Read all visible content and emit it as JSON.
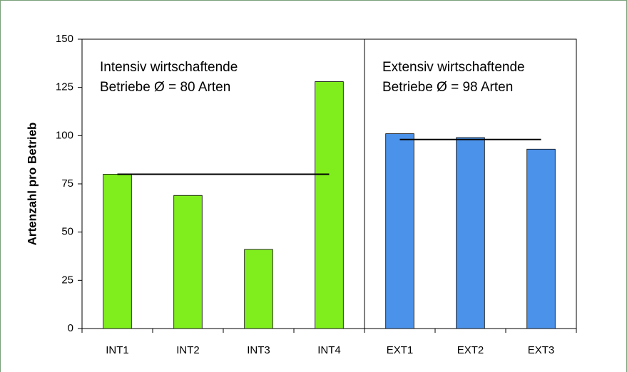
{
  "chart_data": {
    "type": "bar",
    "y_label": "Artenzahl pro Betrieb",
    "ylim": [
      0,
      150
    ],
    "yticks": [
      0,
      25,
      50,
      75,
      100,
      125,
      150
    ],
    "groups": [
      {
        "label_lines": [
          "Intensiv wirtschaftende",
          "Betriebe Ø = 80 Arten"
        ],
        "average": 80,
        "color": "#80ee1c",
        "categories": [
          "INT1",
          "INT2",
          "INT3",
          "INT4"
        ],
        "values": [
          80,
          69,
          41,
          128
        ]
      },
      {
        "label_lines": [
          "Extensiv wirtschaftende",
          "Betriebe Ø = 98 Arten"
        ],
        "average": 98,
        "color": "#4b92ea",
        "categories": [
          "EXT1",
          "EXT2",
          "EXT3"
        ],
        "values": [
          101,
          99,
          93
        ]
      }
    ]
  }
}
